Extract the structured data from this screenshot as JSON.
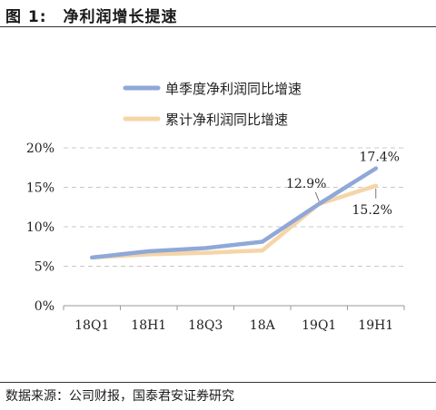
{
  "figure": {
    "label": "图 1:",
    "title": "净利润增长提速",
    "source": "数据来源：公司财报，国泰君安证券研究"
  },
  "colors": {
    "series_quarterly": "#8fa8d8",
    "series_cumulative": "#f5d5a8",
    "grid": "#c8c8c8",
    "axis": "#999999"
  },
  "chart_data": {
    "type": "line",
    "categories": [
      "18Q1",
      "18H1",
      "18Q3",
      "18A",
      "19Q1",
      "19H1"
    ],
    "y_ticks": [
      "0%",
      "5%",
      "10%",
      "15%",
      "20%"
    ],
    "ylim": [
      0,
      20
    ],
    "grid": true,
    "legend_placement": "top-right",
    "series": [
      {
        "name": "单季度净利润同比增速",
        "values": [
          6.1,
          6.9,
          7.3,
          8.1,
          12.9,
          17.4
        ]
      },
      {
        "name": "累计净利润同比增速",
        "values": [
          6.1,
          6.5,
          6.7,
          7.0,
          12.9,
          15.2
        ]
      }
    ],
    "annotations": [
      "12.9%",
      "17.4%",
      "15.2%"
    ]
  }
}
